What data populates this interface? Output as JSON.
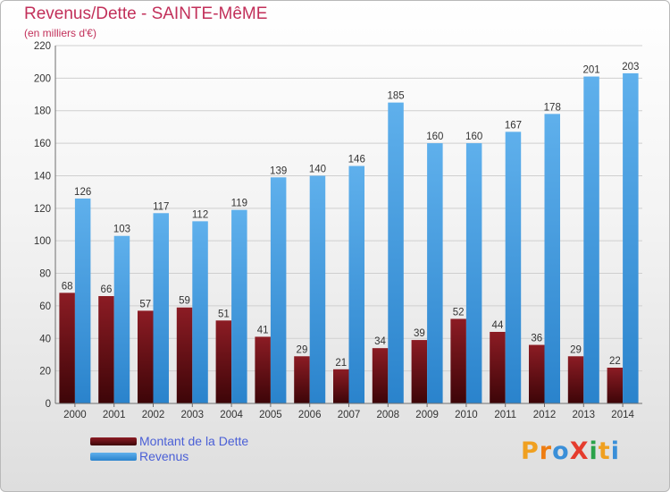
{
  "title": "Revenus/Dette - SAINTE-MêME",
  "subtitle": "(en milliers d'€)",
  "logo": "ProXiti",
  "colors": {
    "dette_top": "#8c1c24",
    "dette_bottom": "#3d0508",
    "revenus_top": "#5fb0ec",
    "revenus_bottom": "#2a83cc",
    "title": "#c2305a",
    "legend_text": "#4a5fd6"
  },
  "chart_data": {
    "type": "bar",
    "title": "Revenus/Dette - SAINTE-MêME",
    "subtitle": "(en milliers d'€)",
    "categories": [
      "2000",
      "2001",
      "2002",
      "2003",
      "2004",
      "2005",
      "2006",
      "2007",
      "2008",
      "2009",
      "2010",
      "2011",
      "2012",
      "2013",
      "2014"
    ],
    "series": [
      {
        "name": "Montant de la Dette",
        "values": [
          68,
          66,
          57,
          59,
          51,
          41,
          29,
          21,
          34,
          39,
          52,
          44,
          36,
          29,
          22
        ]
      },
      {
        "name": "Revenus",
        "values": [
          126,
          103,
          117,
          112,
          119,
          139,
          140,
          146,
          185,
          160,
          160,
          167,
          178,
          201,
          203
        ]
      }
    ],
    "ylim": [
      0,
      220
    ],
    "yticks": [
      0,
      20,
      40,
      60,
      80,
      100,
      120,
      140,
      160,
      180,
      200,
      220
    ],
    "grid": true,
    "legend_position": "bottom-left"
  }
}
